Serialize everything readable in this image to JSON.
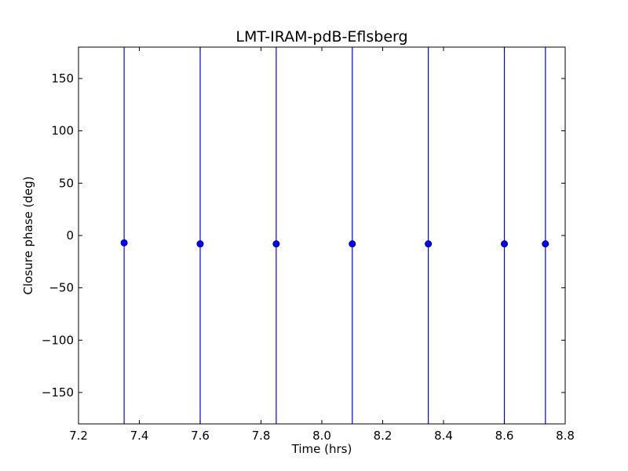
{
  "chart_data": {
    "type": "scatter",
    "title": "LMT-IRAM-pdB-Eflsberg",
    "xlabel": "Time (hrs)",
    "ylabel": "Closure phase (deg)",
    "xlim": [
      7.2,
      8.8
    ],
    "ylim": [
      -180,
      180
    ],
    "x_ticks": [
      7.2,
      7.4,
      7.6,
      7.8,
      8.0,
      8.2,
      8.4,
      8.6,
      8.8
    ],
    "x_tick_labels": [
      "7.2",
      "7.4",
      "7.6",
      "7.8",
      "8.0",
      "8.2",
      "8.4",
      "8.6",
      "8.8"
    ],
    "y_ticks": [
      -150,
      -100,
      -50,
      0,
      50,
      100,
      150
    ],
    "y_tick_labels": [
      "−150",
      "−100",
      "−50",
      "0",
      "50",
      "100",
      "150"
    ],
    "grid": false,
    "series": [
      {
        "color": "#0000ff",
        "marker": "circle",
        "x": [
          7.35,
          7.6,
          7.85,
          8.1,
          8.35,
          8.6,
          8.735
        ],
        "y": [
          -7,
          -8,
          -8,
          -8,
          -8,
          -8,
          -8
        ],
        "error_bars": "vertical, extending beyond the y-axis range"
      }
    ]
  }
}
